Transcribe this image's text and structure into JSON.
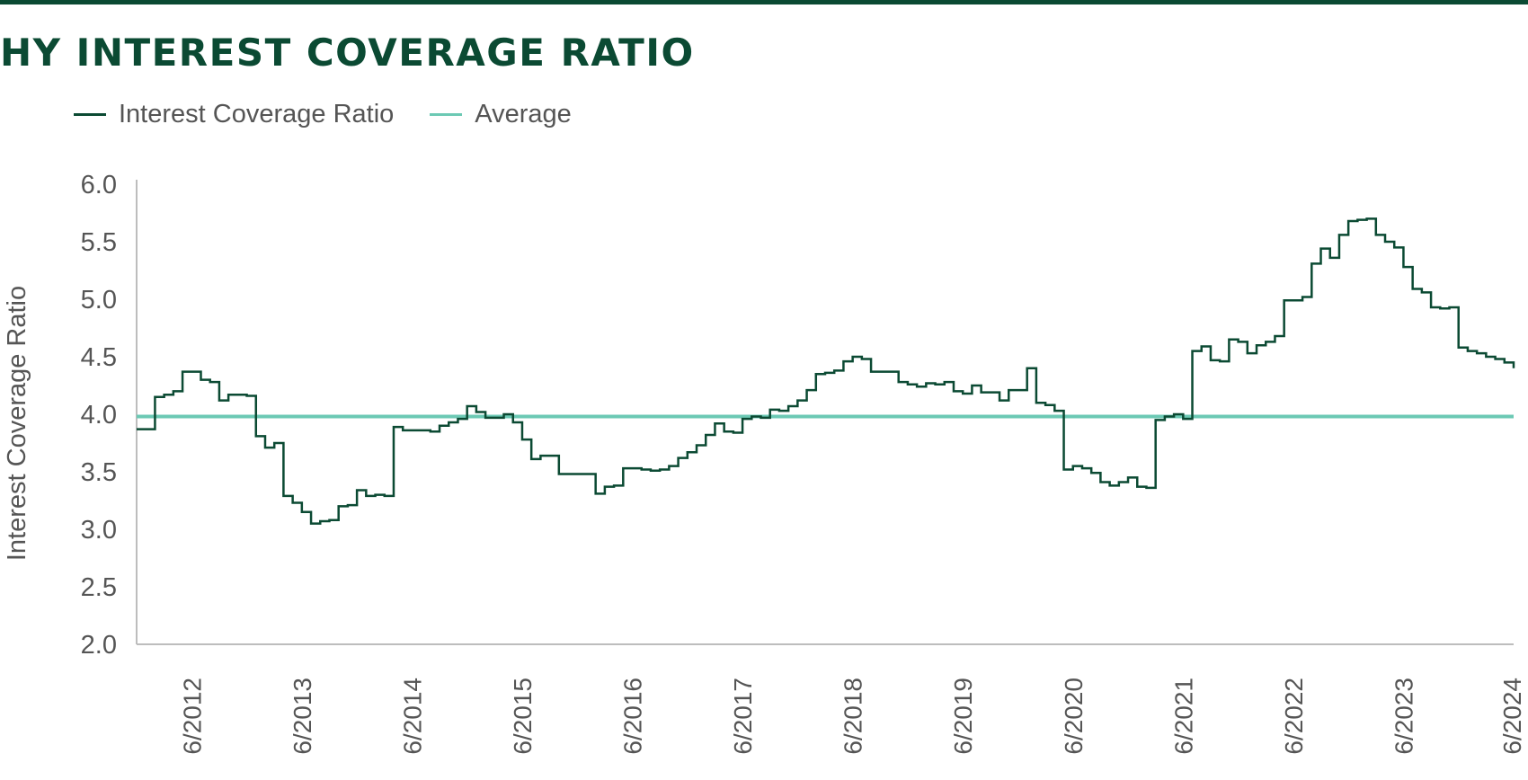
{
  "chart_data": {
    "type": "line",
    "title": "HY INTEREST COVERAGE RATIO",
    "ylabel": "Interest Coverage Ratio",
    "xlabel": "",
    "ylim": [
      2.0,
      6.0
    ],
    "y_ticks": [
      "6.0",
      "5.5",
      "5.0",
      "4.5",
      "4.0",
      "3.5",
      "3.0",
      "2.5",
      "2.0"
    ],
    "x_tick_labels": [
      "6/2012",
      "6/2013",
      "6/2014",
      "6/2015",
      "6/2016",
      "6/2017",
      "6/2018",
      "6/2019",
      "6/2020",
      "6/2021",
      "6/2022",
      "6/2023",
      "6/2024"
    ],
    "x_range": [
      "2011-12",
      "2024-06"
    ],
    "grid": false,
    "legend_position": "top-left",
    "colors": {
      "ratio": "#0b4a33",
      "average": "#6cc9b4",
      "title": "#0b4a33"
    },
    "series": [
      {
        "name": "Interest Coverage Ratio",
        "style": "step-line",
        "points": [
          [
            "2012-01",
            3.87
          ],
          [
            "2012-02",
            4.15
          ],
          [
            "2012-03",
            4.17
          ],
          [
            "2012-04",
            4.2
          ],
          [
            "2012-05",
            4.37
          ],
          [
            "2012-07",
            4.3
          ],
          [
            "2012-08",
            4.28
          ],
          [
            "2012-09",
            4.12
          ],
          [
            "2012-10",
            4.17
          ],
          [
            "2012-12",
            4.16
          ],
          [
            "2013-01",
            3.81
          ],
          [
            "2013-02",
            3.71
          ],
          [
            "2013-03",
            3.75
          ],
          [
            "2013-04",
            3.29
          ],
          [
            "2013-05",
            3.23
          ],
          [
            "2013-06",
            3.15
          ],
          [
            "2013-07",
            3.05
          ],
          [
            "2013-08",
            3.07
          ],
          [
            "2013-09",
            3.08
          ],
          [
            "2013-10",
            3.2
          ],
          [
            "2013-11",
            3.21
          ],
          [
            "2013-12",
            3.34
          ],
          [
            "2014-01",
            3.29
          ],
          [
            "2014-02",
            3.3
          ],
          [
            "2014-03",
            3.29
          ],
          [
            "2014-04",
            3.89
          ],
          [
            "2014-05",
            3.86
          ],
          [
            "2014-06",
            3.86
          ],
          [
            "2014-08",
            3.85
          ],
          [
            "2014-09",
            3.9
          ],
          [
            "2014-10",
            3.93
          ],
          [
            "2014-11",
            3.96
          ],
          [
            "2014-12",
            4.07
          ],
          [
            "2015-01",
            4.02
          ],
          [
            "2015-02",
            3.97
          ],
          [
            "2015-04",
            4.0
          ],
          [
            "2015-05",
            3.93
          ],
          [
            "2015-06",
            3.78
          ],
          [
            "2015-07",
            3.61
          ],
          [
            "2015-08",
            3.64
          ],
          [
            "2015-10",
            3.48
          ],
          [
            "2016-01",
            3.48
          ],
          [
            "2016-02",
            3.31
          ],
          [
            "2016-03",
            3.37
          ],
          [
            "2016-04",
            3.38
          ],
          [
            "2016-05",
            3.53
          ],
          [
            "2016-07",
            3.52
          ],
          [
            "2016-08",
            3.51
          ],
          [
            "2016-09",
            3.52
          ],
          [
            "2016-10",
            3.55
          ],
          [
            "2016-11",
            3.62
          ],
          [
            "2016-12",
            3.67
          ],
          [
            "2017-01",
            3.73
          ],
          [
            "2017-02",
            3.82
          ],
          [
            "2017-03",
            3.92
          ],
          [
            "2017-04",
            3.85
          ],
          [
            "2017-05",
            3.84
          ],
          [
            "2017-06",
            3.96
          ],
          [
            "2017-07",
            3.98
          ],
          [
            "2017-08",
            3.97
          ],
          [
            "2017-09",
            4.04
          ],
          [
            "2017-10",
            4.03
          ],
          [
            "2017-11",
            4.07
          ],
          [
            "2017-12",
            4.12
          ],
          [
            "2018-01",
            4.21
          ],
          [
            "2018-02",
            4.35
          ],
          [
            "2018-03",
            4.36
          ],
          [
            "2018-04",
            4.38
          ],
          [
            "2018-05",
            4.46
          ],
          [
            "2018-06",
            4.5
          ],
          [
            "2018-07",
            4.48
          ],
          [
            "2018-08",
            4.37
          ],
          [
            "2018-10",
            4.37
          ],
          [
            "2018-11",
            4.28
          ],
          [
            "2018-12",
            4.26
          ],
          [
            "2019-01",
            4.24
          ],
          [
            "2019-02",
            4.27
          ],
          [
            "2019-03",
            4.26
          ],
          [
            "2019-04",
            4.28
          ],
          [
            "2019-05",
            4.2
          ],
          [
            "2019-06",
            4.18
          ],
          [
            "2019-07",
            4.25
          ],
          [
            "2019-08",
            4.19
          ],
          [
            "2019-09",
            4.19
          ],
          [
            "2019-10",
            4.12
          ],
          [
            "2019-11",
            4.21
          ],
          [
            "2019-12",
            4.21
          ],
          [
            "2020-01",
            4.4
          ],
          [
            "2020-02",
            4.1
          ],
          [
            "2020-03",
            4.08
          ],
          [
            "2020-04",
            4.03
          ],
          [
            "2020-05",
            3.52
          ],
          [
            "2020-06",
            3.55
          ],
          [
            "2020-07",
            3.53
          ],
          [
            "2020-08",
            3.49
          ],
          [
            "2020-09",
            3.41
          ],
          [
            "2020-10",
            3.38
          ],
          [
            "2020-11",
            3.41
          ],
          [
            "2020-12",
            3.45
          ],
          [
            "2021-01",
            3.37
          ],
          [
            "2021-02",
            3.36
          ],
          [
            "2021-03",
            3.95
          ],
          [
            "2021-04",
            3.98
          ],
          [
            "2021-05",
            4.0
          ],
          [
            "2021-06",
            3.96
          ],
          [
            "2021-07",
            4.55
          ],
          [
            "2021-08",
            4.59
          ],
          [
            "2021-09",
            4.47
          ],
          [
            "2021-10",
            4.46
          ],
          [
            "2021-11",
            4.65
          ],
          [
            "2021-12",
            4.63
          ],
          [
            "2022-01",
            4.53
          ],
          [
            "2022-02",
            4.6
          ],
          [
            "2022-03",
            4.63
          ],
          [
            "2022-04",
            4.68
          ],
          [
            "2022-05",
            4.99
          ],
          [
            "2022-06",
            4.99
          ],
          [
            "2022-07",
            5.02
          ],
          [
            "2022-08",
            5.31
          ],
          [
            "2022-09",
            5.44
          ],
          [
            "2022-10",
            5.36
          ],
          [
            "2022-11",
            5.56
          ],
          [
            "2022-12",
            5.68
          ],
          [
            "2023-01",
            5.69
          ],
          [
            "2023-02",
            5.7
          ],
          [
            "2023-03",
            5.56
          ],
          [
            "2023-04",
            5.5
          ],
          [
            "2023-05",
            5.45
          ],
          [
            "2023-06",
            5.28
          ],
          [
            "2023-07",
            5.09
          ],
          [
            "2023-08",
            5.06
          ],
          [
            "2023-09",
            4.93
          ],
          [
            "2023-10",
            4.92
          ],
          [
            "2023-11",
            4.93
          ],
          [
            "2023-12",
            4.58
          ],
          [
            "2024-01",
            4.55
          ],
          [
            "2024-02",
            4.53
          ],
          [
            "2024-03",
            4.5
          ],
          [
            "2024-04",
            4.48
          ],
          [
            "2024-05",
            4.45
          ],
          [
            "2024-06",
            4.4
          ]
        ]
      },
      {
        "name": "Average",
        "style": "horizontal-line",
        "value": 3.98
      }
    ]
  }
}
